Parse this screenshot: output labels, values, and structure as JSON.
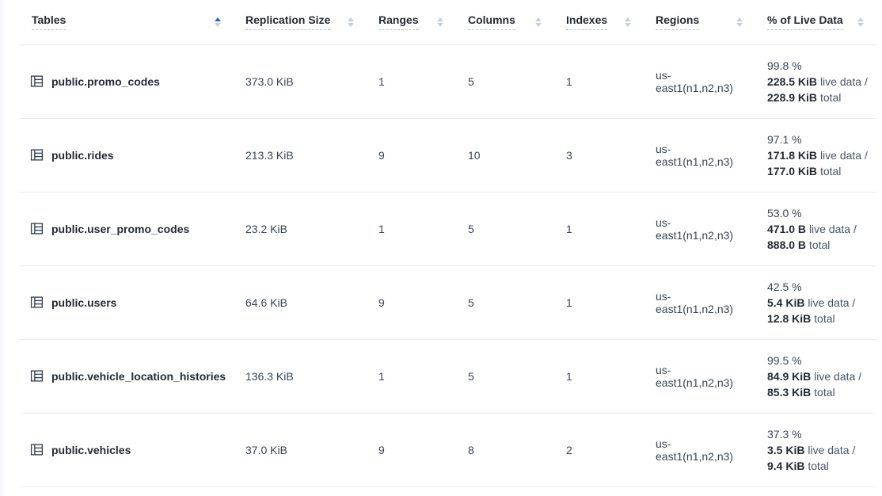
{
  "table": {
    "columns": [
      {
        "label": "Tables",
        "sort": "asc"
      },
      {
        "label": "Replication Size",
        "sort": "none"
      },
      {
        "label": "Ranges",
        "sort": "none"
      },
      {
        "label": "Columns",
        "sort": "none"
      },
      {
        "label": "Indexes",
        "sort": "none"
      },
      {
        "label": "Regions",
        "sort": "none"
      },
      {
        "label": "% of Live Data",
        "sort": "none"
      }
    ],
    "rows": [
      {
        "name": "public.promo_codes",
        "replication_size": "373.0 KiB",
        "ranges": "1",
        "columns": "5",
        "indexes": "1",
        "regions": "us-east1(n1,n2,n3)",
        "live_percent": "99.8 %",
        "live_value": "228.5 KiB",
        "live_label": "live data /",
        "total_value": "228.9 KiB",
        "total_label": "total"
      },
      {
        "name": "public.rides",
        "replication_size": "213.3 KiB",
        "ranges": "9",
        "columns": "10",
        "indexes": "3",
        "regions": "us-east1(n1,n2,n3)",
        "live_percent": "97.1 %",
        "live_value": "171.8 KiB",
        "live_label": "live data /",
        "total_value": "177.0 KiB",
        "total_label": "total"
      },
      {
        "name": "public.user_promo_codes",
        "replication_size": "23.2 KiB",
        "ranges": "1",
        "columns": "5",
        "indexes": "1",
        "regions": "us-east1(n1,n2,n3)",
        "live_percent": "53.0 %",
        "live_value": "471.0 B",
        "live_label": "live data /",
        "total_value": "888.0 B",
        "total_label": "total"
      },
      {
        "name": "public.users",
        "replication_size": "64.6 KiB",
        "ranges": "9",
        "columns": "5",
        "indexes": "1",
        "regions": "us-east1(n1,n2,n3)",
        "live_percent": "42.5 %",
        "live_value": "5.4 KiB",
        "live_label": "live data /",
        "total_value": "12.8 KiB",
        "total_label": "total"
      },
      {
        "name": "public.vehicle_location_histories",
        "replication_size": "136.3 KiB",
        "ranges": "1",
        "columns": "5",
        "indexes": "1",
        "regions": "us-east1(n1,n2,n3)",
        "live_percent": "99.5 %",
        "live_value": "84.9 KiB",
        "live_label": "live data /",
        "total_value": "85.3 KiB",
        "total_label": "total"
      },
      {
        "name": "public.vehicles",
        "replication_size": "37.0 KiB",
        "ranges": "9",
        "columns": "8",
        "indexes": "2",
        "regions": "us-east1(n1,n2,n3)",
        "live_percent": "37.3 %",
        "live_value": "3.5 KiB",
        "live_label": "live data /",
        "total_value": "9.4 KiB",
        "total_label": "total"
      }
    ],
    "colors": {
      "sort_active": "#2962d9",
      "sort_inactive": "#c6cfdb",
      "row_border": "#e7ecf3",
      "text_primary": "#242a35",
      "text_secondary": "#394455",
      "page_edge": "#f5f7fa"
    }
  }
}
